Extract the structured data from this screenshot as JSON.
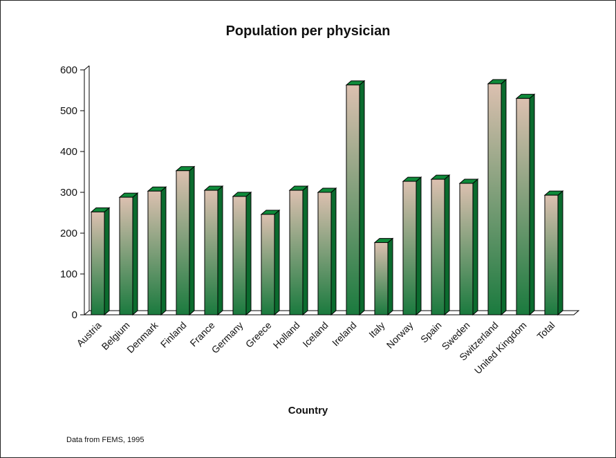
{
  "chart_data": {
    "type": "bar",
    "title": "Population per physician",
    "xlabel": "Country",
    "ylabel": "",
    "ylim": [
      0,
      600
    ],
    "yticks": [
      0,
      100,
      200,
      300,
      400,
      500,
      600
    ],
    "categories": [
      "Austria",
      "Belgium",
      "Denmark",
      "Finland",
      "France",
      "Germany",
      "Greece",
      "Holland",
      "Iceland",
      "Ireland",
      "Italy",
      "Norway",
      "Spain",
      "Sweden",
      "Switzerland",
      "United Kingdom",
      "Total"
    ],
    "values": [
      252,
      288,
      303,
      353,
      305,
      290,
      246,
      305,
      300,
      563,
      177,
      327,
      332,
      322,
      566,
      530,
      293
    ],
    "grid": false,
    "style": "3d",
    "colors": {
      "bar_top": "#dcc0b0",
      "bar_bottom": "#1a7a3e",
      "bar_side": "#0b6b2e",
      "bar_cap": "#0f8a3a",
      "outline": "#000000"
    }
  },
  "source_note": "Data from FEMS, 1995"
}
